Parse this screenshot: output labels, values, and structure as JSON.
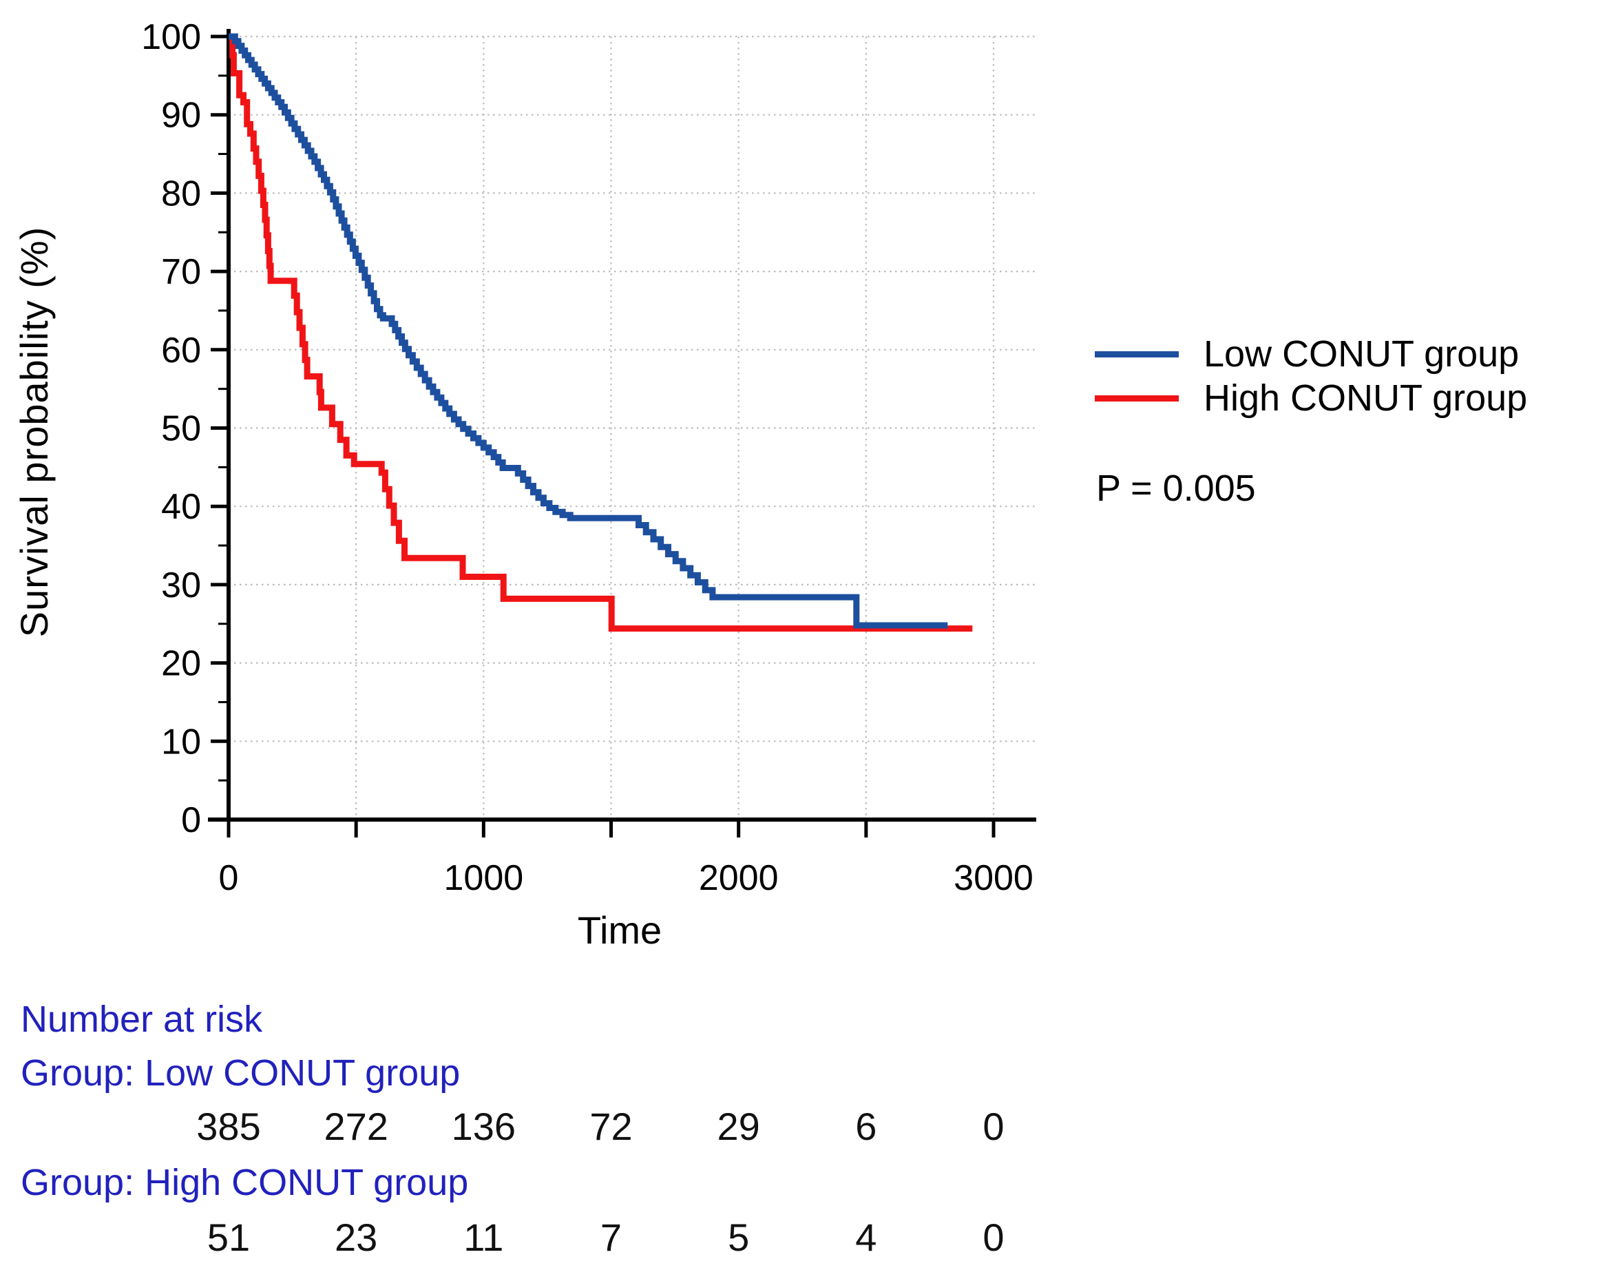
{
  "chart_data": {
    "type": "line",
    "subtype": "kaplan-meier-step",
    "title": "",
    "xlabel": "Time",
    "ylabel": "Survival probability (%)",
    "xlim": [
      0,
      3000
    ],
    "ylim": [
      0,
      100
    ],
    "x_major_ticks": [
      0,
      500,
      1000,
      1500,
      2000,
      2500,
      3000
    ],
    "x_labeled_ticks": [
      {
        "t": 0,
        "label": "0"
      },
      {
        "t": 1000,
        "label": "1000"
      },
      {
        "t": 2000,
        "label": "2000"
      },
      {
        "t": 3000,
        "label": "3000"
      }
    ],
    "y_major_ticks": [
      0,
      10,
      20,
      30,
      40,
      50,
      60,
      70,
      80,
      90,
      100
    ],
    "y_minor_ticks": [
      5,
      15,
      25,
      35,
      45,
      55,
      65,
      75,
      85,
      95
    ],
    "grid": "dotted",
    "grid_color": "#bcbcbc",
    "axis_color": "#000000",
    "legend_position": "right",
    "series": [
      {
        "name": "Low CONUT group",
        "color": "#1d4f9f",
        "points": [
          [
            0,
            100
          ],
          [
            25,
            99.4
          ],
          [
            38,
            98.8
          ],
          [
            51,
            98.2
          ],
          [
            64,
            97.6
          ],
          [
            77,
            97.0
          ],
          [
            90,
            96.4
          ],
          [
            103,
            95.8
          ],
          [
            116,
            95.2
          ],
          [
            129,
            94.6
          ],
          [
            142,
            94.0
          ],
          [
            155,
            93.4
          ],
          [
            168,
            92.8
          ],
          [
            181,
            92.2
          ],
          [
            194,
            91.6
          ],
          [
            207,
            91.0
          ],
          [
            220,
            90.3
          ],
          [
            233,
            89.6
          ],
          [
            246,
            88.9
          ],
          [
            259,
            88.2
          ],
          [
            272,
            87.5
          ],
          [
            285,
            86.8
          ],
          [
            298,
            86.1
          ],
          [
            311,
            85.4
          ],
          [
            324,
            84.7
          ],
          [
            337,
            84.0
          ],
          [
            350,
            83.2
          ],
          [
            362,
            82.4
          ],
          [
            374,
            81.7
          ],
          [
            386,
            80.9
          ],
          [
            398,
            80.1
          ],
          [
            410,
            79.2
          ],
          [
            421,
            78.3
          ],
          [
            432,
            77.4
          ],
          [
            443,
            76.5
          ],
          [
            454,
            75.6
          ],
          [
            465,
            74.7
          ],
          [
            476,
            73.8
          ],
          [
            487,
            72.9
          ],
          [
            498,
            72.0
          ],
          [
            510,
            71.1
          ],
          [
            522,
            70.2
          ],
          [
            534,
            69.2
          ],
          [
            546,
            68.2
          ],
          [
            558,
            67.2
          ],
          [
            570,
            66.2
          ],
          [
            582,
            65.2
          ],
          [
            594,
            64.4
          ],
          [
            606,
            64.0
          ],
          [
            640,
            63.3
          ],
          [
            653,
            62.5
          ],
          [
            666,
            61.7
          ],
          [
            679,
            60.9
          ],
          [
            692,
            60.1
          ],
          [
            706,
            59.3
          ],
          [
            722,
            58.5
          ],
          [
            738,
            57.7
          ],
          [
            754,
            56.9
          ],
          [
            770,
            56.1
          ],
          [
            786,
            55.3
          ],
          [
            802,
            54.6
          ],
          [
            818,
            53.9
          ],
          [
            834,
            53.2
          ],
          [
            850,
            52.5
          ],
          [
            866,
            51.8
          ],
          [
            884,
            51.1
          ],
          [
            902,
            50.5
          ],
          [
            920,
            49.9
          ],
          [
            940,
            49.3
          ],
          [
            960,
            48.7
          ],
          [
            980,
            48.1
          ],
          [
            1000,
            47.5
          ],
          [
            1020,
            46.9
          ],
          [
            1040,
            46.3
          ],
          [
            1058,
            45.6
          ],
          [
            1075,
            44.9
          ],
          [
            1135,
            44.2
          ],
          [
            1155,
            43.4
          ],
          [
            1175,
            42.6
          ],
          [
            1195,
            41.8
          ],
          [
            1215,
            41.1
          ],
          [
            1235,
            40.4
          ],
          [
            1258,
            39.8
          ],
          [
            1282,
            39.3
          ],
          [
            1310,
            38.9
          ],
          [
            1340,
            38.5
          ],
          [
            1608,
            37.6
          ],
          [
            1637,
            36.7
          ],
          [
            1666,
            35.8
          ],
          [
            1695,
            34.8
          ],
          [
            1724,
            33.9
          ],
          [
            1753,
            33.0
          ],
          [
            1782,
            32.1
          ],
          [
            1811,
            31.2
          ],
          [
            1840,
            30.3
          ],
          [
            1869,
            29.3
          ],
          [
            1898,
            28.4
          ],
          [
            2462,
            24.8
          ],
          [
            2820,
            24.8
          ]
        ]
      },
      {
        "name": "High CONUT group",
        "color": "#f01416",
        "points": [
          [
            0,
            100
          ],
          [
            15,
            97.6
          ],
          [
            20,
            95.3
          ],
          [
            42,
            92.5
          ],
          [
            58,
            91.6
          ],
          [
            72,
            88.8
          ],
          [
            85,
            87.6
          ],
          [
            98,
            85.7
          ],
          [
            108,
            84.0
          ],
          [
            118,
            82.2
          ],
          [
            128,
            80.3
          ],
          [
            136,
            78.5
          ],
          [
            143,
            76.6
          ],
          [
            149,
            74.6
          ],
          [
            155,
            72.6
          ],
          [
            160,
            70.7
          ],
          [
            165,
            68.8
          ],
          [
            257,
            66.9
          ],
          [
            268,
            64.8
          ],
          [
            278,
            62.8
          ],
          [
            290,
            60.7
          ],
          [
            300,
            58.7
          ],
          [
            308,
            56.6
          ],
          [
            357,
            54.6
          ],
          [
            363,
            52.6
          ],
          [
            406,
            50.5
          ],
          [
            438,
            48.5
          ],
          [
            462,
            46.5
          ],
          [
            492,
            45.4
          ],
          [
            600,
            44.3
          ],
          [
            614,
            42.2
          ],
          [
            630,
            40.1
          ],
          [
            648,
            37.9
          ],
          [
            668,
            35.6
          ],
          [
            690,
            33.4
          ],
          [
            918,
            31.0
          ],
          [
            1078,
            28.2
          ],
          [
            1502,
            24.4
          ],
          [
            2917,
            24.4
          ]
        ]
      }
    ],
    "annotations": {
      "p_value": "P = 0.005"
    }
  },
  "legend": {
    "items": [
      {
        "label": "Low CONUT group",
        "color": "#1d4f9f"
      },
      {
        "label": "High CONUT group",
        "color": "#f01416"
      }
    ]
  },
  "risk_table": {
    "title": "Number at risk",
    "text_color": "#2121bd",
    "times": [
      0,
      500,
      1000,
      1500,
      2000,
      2500,
      3000
    ],
    "rows": [
      {
        "label": "Group: Low CONUT group",
        "values": [
          "385",
          "272",
          "136",
          "72",
          "29",
          "6",
          "0"
        ]
      },
      {
        "label": "Group: High CONUT group",
        "values": [
          "51",
          "23",
          "11",
          "7",
          "5",
          "4",
          "0"
        ]
      }
    ]
  }
}
